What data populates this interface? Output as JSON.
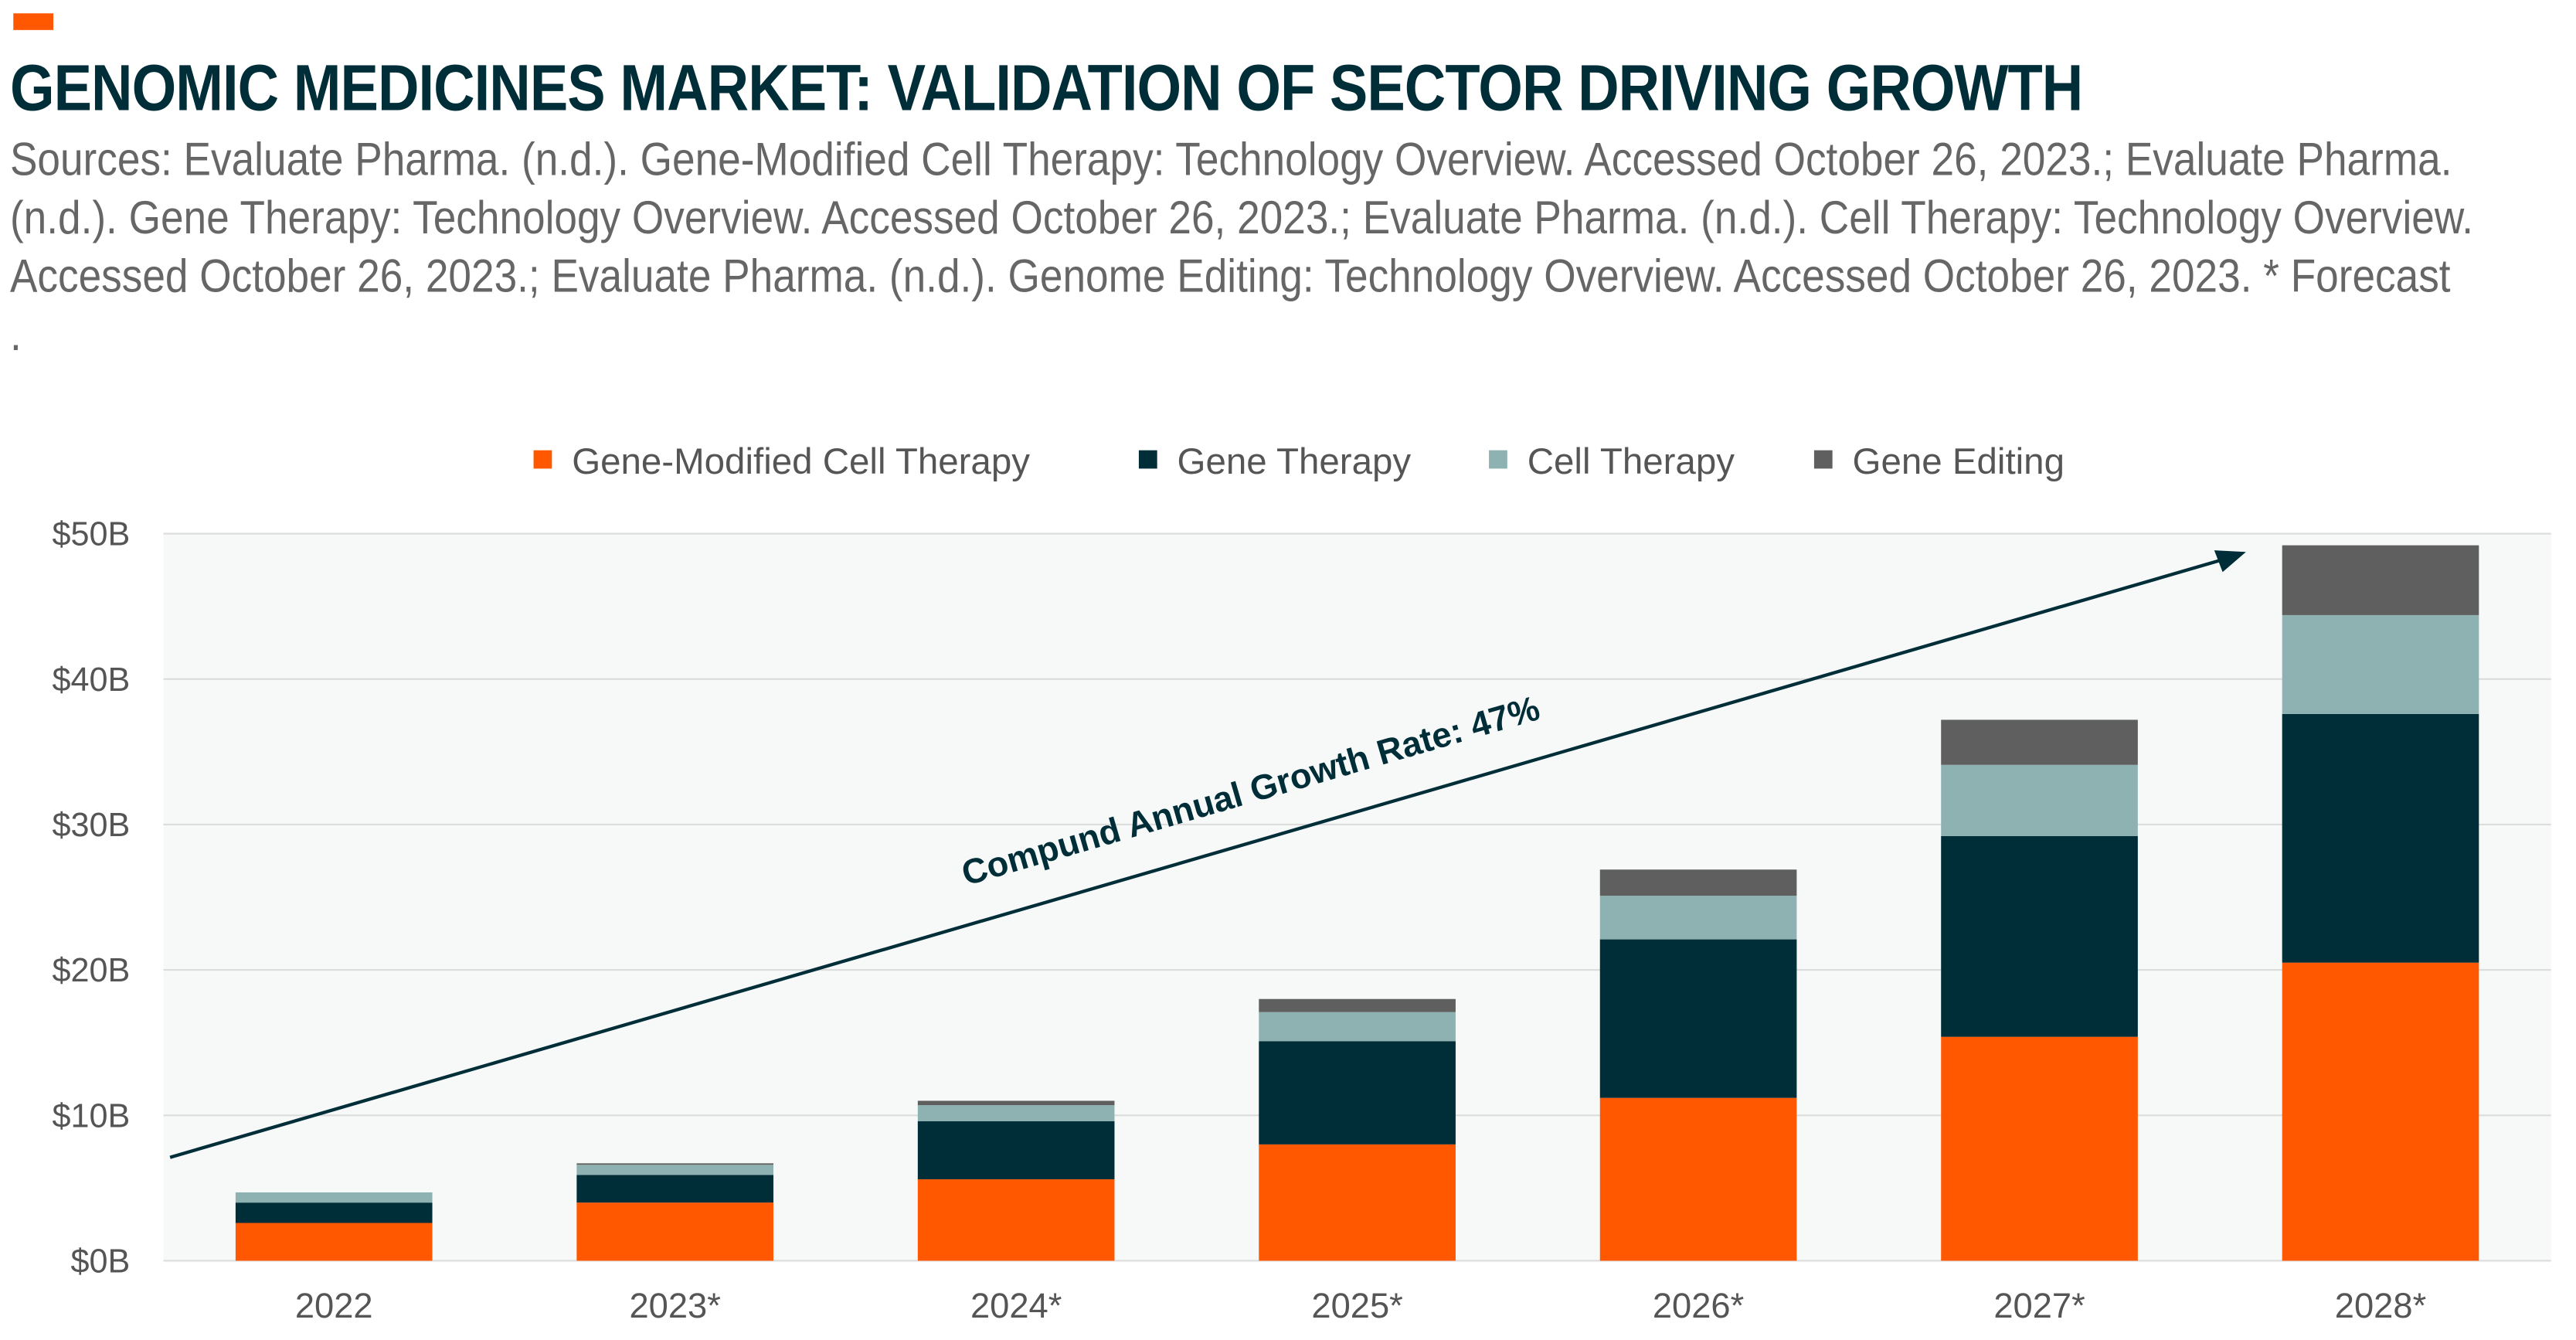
{
  "header": {
    "title": "GENOMIC MEDICINES MARKET: VALIDATION OF SECTOR DRIVING GROWTH",
    "subtitle": "Sources: Evaluate Pharma. (n.d.). Gene-Modified Cell Therapy: Technology Overview. Accessed October 26, 2023.; Evaluate Pharma. (n.d.). Gene Therapy: Technology Overview. Accessed October 26, 2023.; Evaluate Pharma. (n.d.). Cell Therapy: Technology Overview. Accessed October 26, 2023.; Evaluate Pharma. (n.d.). Genome Editing: Technology Overview. Accessed October 26, 2023. * Forecast",
    "trailing_mark": "."
  },
  "colors": {
    "accent": "#ff5800",
    "title": "#002e38",
    "plot_bg": "#f7f9f9"
  },
  "chart_data": {
    "type": "bar",
    "stacked": true,
    "categories": [
      "2022",
      "2023*",
      "2024*",
      "2025*",
      "2026*",
      "2027*",
      "2028*"
    ],
    "series": [
      {
        "name": "Gene-Modified Cell Therapy",
        "color": "#ff5800",
        "values": [
          2.6,
          4.0,
          5.6,
          8.0,
          11.2,
          15.4,
          20.5
        ]
      },
      {
        "name": "Gene Therapy",
        "color": "#002e38",
        "values": [
          1.4,
          1.9,
          4.0,
          7.1,
          10.9,
          13.8,
          17.1
        ]
      },
      {
        "name": "Cell Therapy",
        "color": "#8eb1b1",
        "values": [
          0.7,
          0.7,
          1.1,
          2.0,
          3.0,
          4.9,
          6.8
        ]
      },
      {
        "name": "Gene Editing",
        "color": "#5f5f5f",
        "values": [
          0.0,
          0.1,
          0.3,
          0.9,
          1.8,
          3.1,
          4.8
        ]
      }
    ],
    "ylim": [
      0,
      50
    ],
    "yticks": [
      0,
      10,
      20,
      30,
      40,
      50
    ],
    "ytick_labels": [
      "$0B",
      "$10B",
      "$20B",
      "$30B",
      "$40B",
      "$50B"
    ],
    "grid": true,
    "legend": "top",
    "annotation": "Compund Annual Growth Rate: 47%"
  }
}
